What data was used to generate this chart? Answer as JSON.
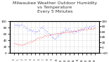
{
  "title": "Milwaukee Weather Outdoor Humidity\nvs Temperature\nEvery 5 Minutes",
  "title_fontsize": 4.5,
  "background_color": "#ffffff",
  "grid_color": "#cccccc",
  "humidity_color": "#0000ff",
  "temp_color": "#ff0000",
  "ylim_humidity": [
    0,
    100
  ],
  "ylim_temp": [
    -20,
    100
  ],
  "num_points": 200,
  "humidity_seed": 42,
  "temp_seed": 99
}
